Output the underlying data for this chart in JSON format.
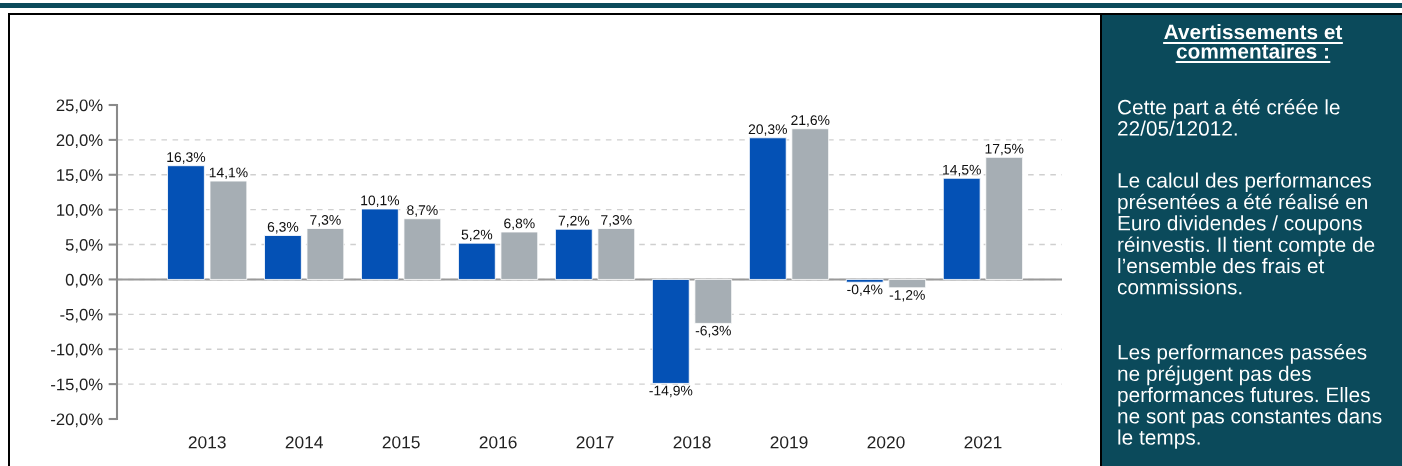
{
  "chart_data": [
    {
      "type": "bar",
      "categories": [
        "2013",
        "2014",
        "2015",
        "2016",
        "2017",
        "2018",
        "2019",
        "2020",
        "2021"
      ],
      "series": [
        {
          "color": "#0451b5",
          "values": [
            16.3,
            6.3,
            10.1,
            5.2,
            7.2,
            -14.9,
            20.3,
            -0.4,
            14.5
          ],
          "value_labels": [
            "16,3%",
            "6,3%",
            "10,1%",
            "5,2%",
            "7,2%",
            "-14,9%",
            "20,3%",
            "-0,4%",
            "14,5%"
          ]
        },
        {
          "color": "#a6aeb4",
          "values": [
            14.1,
            7.3,
            8.7,
            6.8,
            7.3,
            -6.3,
            21.6,
            -1.2,
            17.5
          ],
          "value_labels": [
            "14,1%",
            "7,3%",
            "8,7%",
            "6,8%",
            "7,3%",
            "-6,3%",
            "21,6%",
            "-1,2%",
            "17,5%"
          ]
        }
      ],
      "ylim": [
        -20,
        25
      ],
      "yticks": [
        {
          "value": -20,
          "label": "-20,0%"
        },
        {
          "value": -15,
          "label": "-15,0%"
        },
        {
          "value": -10,
          "label": "-10,0%"
        },
        {
          "value": -5,
          "label": "-5,0%"
        },
        {
          "value": 0,
          "label": "0,0%"
        },
        {
          "value": 5,
          "label": "5,0%"
        },
        {
          "value": 10,
          "label": "10,0%"
        },
        {
          "value": 15,
          "label": "15,0%"
        },
        {
          "value": 20,
          "label": "20,0%"
        },
        {
          "value": 25,
          "label": "25,0%"
        }
      ],
      "grid": "y"
    },
    {
      "type": "other",
      "title": "Avertissements et\ncommentaires :",
      "annotations": [
        "Cette part a été créée le\n22/05/12012.",
        "Le calcul des performances\nprésentées a été réalisé en\nEuro dividendes / coupons\nréinvestis. Il tient compte de\nl’ensemble des frais et\ncommissions.",
        "Les performances passées\nne préjugent pas des\nperformances futures. Elles\nne sont pas constantes dans\nle temps."
      ]
    }
  ]
}
